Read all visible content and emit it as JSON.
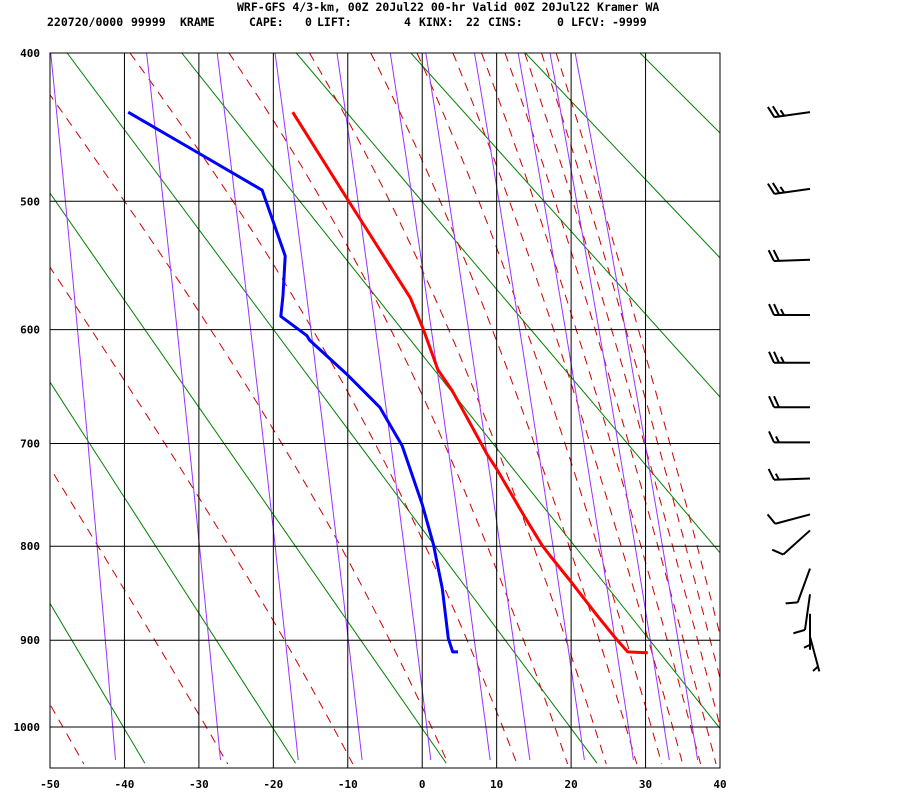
{
  "header": {
    "title": "WRF-GFS 4/3-km, 00Z 20Jul22 00-hr Valid 00Z 20Jul22 Kramer WA",
    "date_time": "220720/0000",
    "station_number": "99999",
    "station_id": "KRAME",
    "cape_label": "CAPE:",
    "cape": "0",
    "lift_label": "LIFT:",
    "lift": "4",
    "kinx_label": "KINX:",
    "kinx": "22",
    "cins_label": "CINS:",
    "cins": "0",
    "lfcv_label": "LFCV:",
    "lfcv": "-9999"
  },
  "chart_data": {
    "type": "line",
    "diagram": "thermodynamic sounding (Stuve)",
    "x_axis": {
      "units": "temperature (C)",
      "range": [
        -50,
        40
      ],
      "ticks": [
        "-50",
        "-40",
        "-30",
        "-20",
        "-10",
        "0",
        "10",
        "20",
        "30",
        "40"
      ]
    },
    "y_axis": {
      "units": "pressure (mb)",
      "scale": "p^0.286 (reversed)",
      "range": [
        400,
        1044
      ],
      "ticks": [
        "400",
        "500",
        "600",
        "700",
        "800",
        "900",
        "1000"
      ]
    },
    "grid": true,
    "reference_lines": {
      "dry_adiabats_color": "#008000",
      "moist_adiabats_color": "#cc0000",
      "mixing_ratio_color": "#9933ff"
    },
    "series": [
      {
        "id": "temperature",
        "color": "#ff0000",
        "points": [
          {
            "p": 438,
            "t": -17.4
          },
          {
            "p": 498,
            "t": -10.1
          },
          {
            "p": 574,
            "t": -1.6
          },
          {
            "p": 599,
            "t": 0.1
          },
          {
            "p": 634,
            "t": 2.1
          },
          {
            "p": 652,
            "t": 4.0
          },
          {
            "p": 670,
            "t": 5.5
          },
          {
            "p": 710,
            "t": 8.7
          },
          {
            "p": 724,
            "t": 10.0
          },
          {
            "p": 771,
            "t": 13.8
          },
          {
            "p": 799,
            "t": 16.1
          },
          {
            "p": 810,
            "t": 17.2
          },
          {
            "p": 836,
            "t": 19.9
          },
          {
            "p": 873,
            "t": 23.5
          },
          {
            "p": 897,
            "t": 25.9
          },
          {
            "p": 913,
            "t": 27.6
          },
          {
            "p": 914,
            "t": 30.3
          }
        ]
      },
      {
        "id": "dewpoint",
        "color": "#0000ff",
        "points": [
          {
            "p": 438,
            "t": -39.5
          },
          {
            "p": 465,
            "t": -30.3
          },
          {
            "p": 492,
            "t": -21.5
          },
          {
            "p": 541,
            "t": -18.4
          },
          {
            "p": 572,
            "t": -18.7
          },
          {
            "p": 589,
            "t": -19.0
          },
          {
            "p": 605,
            "t": -15.5
          },
          {
            "p": 609,
            "t": -15.1
          },
          {
            "p": 638,
            "t": -10.1
          },
          {
            "p": 667,
            "t": -5.7
          },
          {
            "p": 702,
            "t": -2.7
          },
          {
            "p": 758,
            "t": 0.0
          },
          {
            "p": 798,
            "t": 1.5
          },
          {
            "p": 844,
            "t": 2.7
          },
          {
            "p": 898,
            "t": 3.5
          },
          {
            "p": 913,
            "t": 4.1
          },
          {
            "p": 913,
            "t": 4.8
          }
        ]
      }
    ],
    "wind_barbs": [
      {
        "p": 438,
        "dir": 262,
        "kt": 25
      },
      {
        "p": 491,
        "dir": 262,
        "kt": 25
      },
      {
        "p": 544,
        "dir": 268,
        "kt": 20
      },
      {
        "p": 588,
        "dir": 270,
        "kt": 25
      },
      {
        "p": 628,
        "dir": 270,
        "kt": 25
      },
      {
        "p": 667,
        "dir": 270,
        "kt": 20
      },
      {
        "p": 699,
        "dir": 270,
        "kt": 15
      },
      {
        "p": 733,
        "dir": 268,
        "kt": 15
      },
      {
        "p": 768,
        "dir": 255,
        "kt": 10
      },
      {
        "p": 784,
        "dir": 228,
        "kt": 10
      },
      {
        "p": 823,
        "dir": 200,
        "kt": 10
      },
      {
        "p": 850,
        "dir": 188,
        "kt": 10
      },
      {
        "p": 871,
        "dir": 180,
        "kt": 5
      },
      {
        "p": 896,
        "dir": 165,
        "kt": 5
      }
    ]
  }
}
